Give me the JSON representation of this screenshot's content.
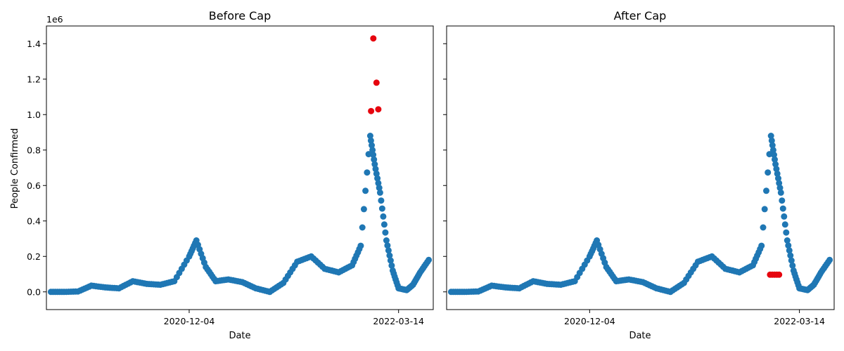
{
  "chart_data": [
    {
      "type": "scatter",
      "title": "Before Cap",
      "xlabel": "Date",
      "ylabel": "People Confirmed",
      "y_offset_label": "1e6",
      "ylim": [
        -100000,
        1500000
      ],
      "xlim": [
        "2020-01-22",
        "2022-05-30"
      ],
      "x_ticks": [
        "2020-12-04",
        "2022-03-14"
      ],
      "y_ticks": [
        0,
        200000,
        400000,
        600000,
        800000,
        1000000,
        1200000,
        1400000
      ],
      "y_tick_labels": [
        "0.0",
        "0.2",
        "0.4",
        "0.6",
        "0.8",
        "1.0",
        "1.2",
        "1.4"
      ],
      "grid": false,
      "series": [
        {
          "color": "#1f77b4",
          "x": [
            "2020-02-01",
            "2020-03-01",
            "2020-04-01",
            "2020-05-01",
            "2020-06-01",
            "2020-07-01",
            "2020-08-01",
            "2020-09-01",
            "2020-10-01",
            "2020-11-01",
            "2020-12-04",
            "2020-12-20",
            "2021-01-10",
            "2021-02-01",
            "2021-03-01",
            "2021-04-01",
            "2021-05-01",
            "2021-06-01",
            "2021-07-01",
            "2021-08-01",
            "2021-09-01",
            "2021-10-01",
            "2021-11-01",
            "2021-12-01",
            "2021-12-20",
            "2022-01-10",
            "2022-01-20",
            "2022-02-01",
            "2022-02-15",
            "2022-03-01",
            "2022-03-14",
            "2022-04-01",
            "2022-04-15",
            "2022-05-01",
            "2022-05-20"
          ],
          "y": [
            0,
            0,
            2000,
            35000,
            25000,
            20000,
            60000,
            45000,
            40000,
            60000,
            200000,
            290000,
            140000,
            60000,
            70000,
            55000,
            20000,
            0,
            50000,
            170000,
            200000,
            130000,
            110000,
            150000,
            260000,
            880000,
            720000,
            560000,
            290000,
            120000,
            20000,
            10000,
            40000,
            110000,
            180000
          ]
        },
        {
          "color": "#e6040e",
          "x": [
            "2022-01-12",
            "2022-01-17",
            "2022-01-24",
            "2022-01-28"
          ],
          "y": [
            1020000,
            1430000,
            1180000,
            1030000
          ]
        }
      ]
    },
    {
      "type": "scatter",
      "title": "After Cap",
      "xlabel": "Date",
      "ylabel": "",
      "ylim": [
        -100000,
        1500000
      ],
      "xlim": [
        "2020-01-22",
        "2022-05-30"
      ],
      "x_ticks": [
        "2020-12-04",
        "2022-03-14"
      ],
      "grid": false,
      "series": [
        {
          "color": "#1f77b4",
          "x": [
            "2020-02-01",
            "2020-03-01",
            "2020-04-01",
            "2020-05-01",
            "2020-06-01",
            "2020-07-01",
            "2020-08-01",
            "2020-09-01",
            "2020-10-01",
            "2020-11-01",
            "2020-12-04",
            "2020-12-20",
            "2021-01-10",
            "2021-02-01",
            "2021-03-01",
            "2021-04-01",
            "2021-05-01",
            "2021-06-01",
            "2021-07-01",
            "2021-08-01",
            "2021-09-01",
            "2021-10-01",
            "2021-11-01",
            "2021-12-01",
            "2021-12-20",
            "2022-01-10",
            "2022-01-20",
            "2022-02-01",
            "2022-02-15",
            "2022-03-01",
            "2022-03-14",
            "2022-04-01",
            "2022-04-15",
            "2022-05-01",
            "2022-05-20"
          ],
          "y": [
            0,
            0,
            2000,
            35000,
            25000,
            20000,
            60000,
            45000,
            40000,
            60000,
            200000,
            290000,
            140000,
            60000,
            70000,
            55000,
            20000,
            0,
            50000,
            170000,
            200000,
            130000,
            110000,
            150000,
            260000,
            880000,
            720000,
            560000,
            290000,
            120000,
            20000,
            10000,
            40000,
            110000,
            180000
          ]
        },
        {
          "color": "#e6040e",
          "x": [
            "2022-01-08",
            "2022-01-13",
            "2022-01-18",
            "2022-01-23",
            "2022-01-28"
          ],
          "y": [
            97000,
            97000,
            97000,
            97000,
            97000
          ]
        }
      ]
    }
  ]
}
